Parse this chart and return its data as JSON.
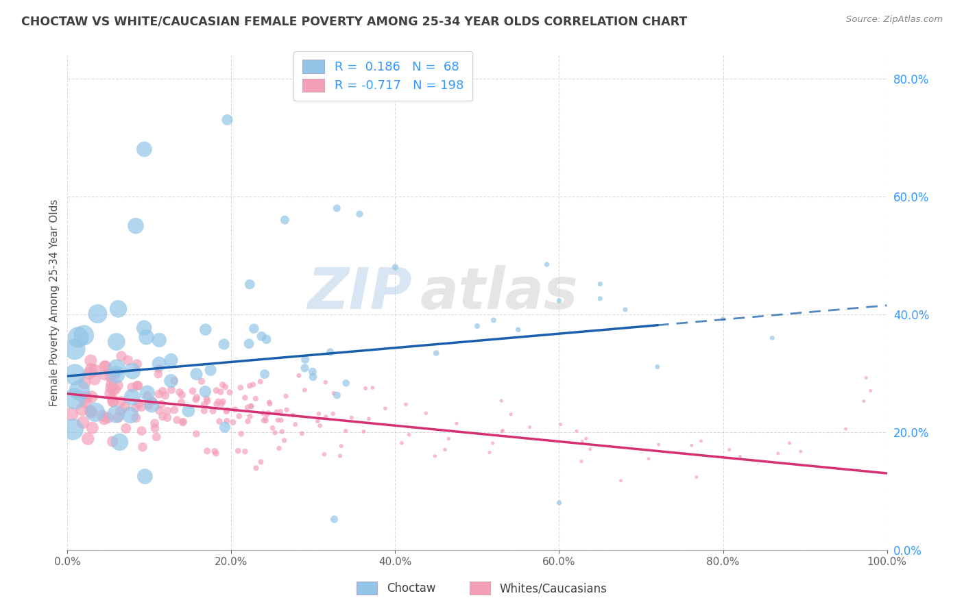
{
  "title": "CHOCTAW VS WHITE/CAUCASIAN FEMALE POVERTY AMONG 25-34 YEAR OLDS CORRELATION CHART",
  "source": "Source: ZipAtlas.com",
  "ylabel": "Female Poverty Among 25-34 Year Olds",
  "watermark_zip": "ZIP",
  "watermark_atlas": "atlas",
  "xlim": [
    0.0,
    1.0
  ],
  "ylim": [
    0.0,
    0.84
  ],
  "yticks": [
    0.0,
    0.2,
    0.4,
    0.6,
    0.8
  ],
  "xticks": [
    0.0,
    0.2,
    0.4,
    0.6,
    0.8,
    1.0
  ],
  "choctaw_color": "#92C5E8",
  "white_color": "#F4A0B8",
  "choctaw_R": 0.186,
  "choctaw_N": 68,
  "white_R": -0.717,
  "white_N": 198,
  "choctaw_line_color": "#1A5FAB",
  "white_line_color": "#D63070",
  "grid_color": "#CCCCCC",
  "legend_label_choctaw": "Choctaw",
  "legend_label_white": "Whites/Caucasians",
  "background_color": "#FFFFFF",
  "title_color": "#404040",
  "source_color": "#888888",
  "axis_label_color": "#505050",
  "tick_label_color": "#3399FF",
  "bottom_tick_color": "#606060",
  "choctaw_line_intercept": 0.295,
  "choctaw_line_slope": 0.12,
  "choctaw_line_solid_end": 0.72,
  "white_line_intercept": 0.265,
  "white_line_slope": -0.135
}
